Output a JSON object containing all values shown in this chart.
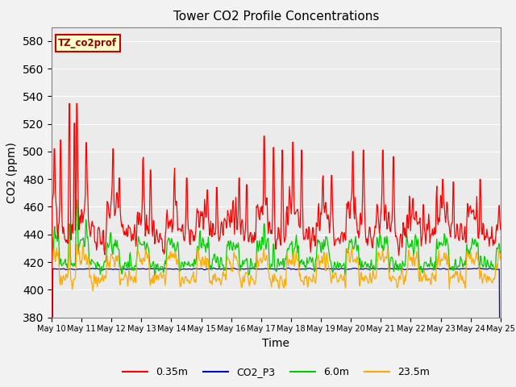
{
  "title": "Tower CO2 Profile Concentrations",
  "xlabel": "Time",
  "ylabel": "CO2 (ppm)",
  "ylim": [
    380,
    590
  ],
  "yticks": [
    380,
    400,
    420,
    440,
    460,
    480,
    500,
    520,
    540,
    560,
    580
  ],
  "n_days": 15,
  "date_labels": [
    "May 10",
    "May 11",
    "May 12",
    "May 13",
    "May 14",
    "May 15",
    "May 16",
    "May 17",
    "May 18",
    "May 19",
    "May 20",
    "May 21",
    "May 22",
    "May 23",
    "May 24",
    "May 25"
  ],
  "fig_bg": "#f2f2f2",
  "ax_bg": "#ebebeb",
  "grid_color": "#ffffff",
  "legend_label": "TZ_co2prof",
  "annotation_facecolor": "#ffffcc",
  "annotation_edgecolor": "#cc0000",
  "line_colors": {
    "0.35m": "#ff0000",
    "CO2_P3": "#0000cc",
    "6.0m": "#00cc00",
    "23.5m": "#ffaa00"
  },
  "line_labels": [
    "0.35m",
    "CO2_P3",
    "6.0m",
    "23.5m"
  ]
}
